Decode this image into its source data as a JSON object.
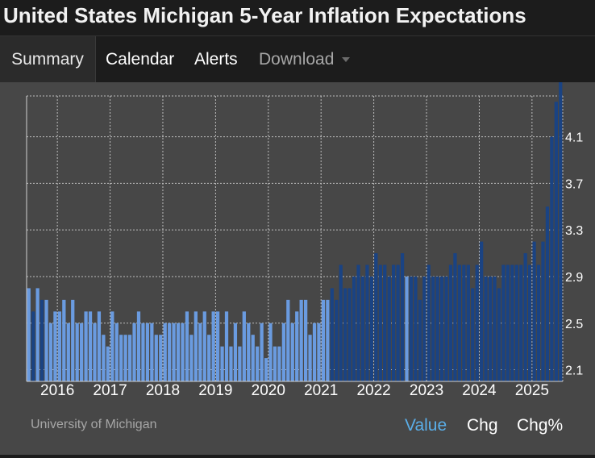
{
  "title": "United States Michigan 5-Year Inflation Expectations",
  "tabs": [
    {
      "label": "Summary",
      "active": true
    },
    {
      "label": "Calendar"
    },
    {
      "label": "Alerts"
    },
    {
      "label": "Download"
    }
  ],
  "source": "University of Michigan",
  "toggles": [
    {
      "label": "Value",
      "active": true
    },
    {
      "label": "Chg"
    },
    {
      "label": "Chg%"
    }
  ],
  "colors": {
    "bar_light": "#6a9be0",
    "bar_dark": "#1a4383",
    "plot_bg": "#474747",
    "grid": "#bdbdbd",
    "accent": "#5aaee8"
  },
  "chart_data": {
    "type": "bar",
    "title": "",
    "xlabel": "",
    "ylabel": "",
    "start_year": 2015,
    "start_month": 6,
    "ylim": [
      2.0,
      4.45
    ],
    "yticks": [
      "2.1",
      "2.5",
      "2.9",
      "3.3",
      "3.7",
      "4.1"
    ],
    "xticks": [
      "2016",
      "2017",
      "2018",
      "2019",
      "2020",
      "2021",
      "2022",
      "2023",
      "2024",
      "2025"
    ],
    "grid": true,
    "dark_from": "2021-03",
    "values": [
      2.8,
      2.6,
      2.8,
      2.7,
      2.7,
      2.5,
      2.6,
      2.6,
      2.7,
      2.5,
      2.7,
      2.5,
      2.5,
      2.6,
      2.6,
      2.5,
      2.6,
      2.4,
      2.3,
      2.6,
      2.5,
      2.4,
      2.4,
      2.4,
      2.5,
      2.6,
      2.5,
      2.5,
      2.5,
      2.4,
      2.4,
      2.5,
      2.5,
      2.5,
      2.5,
      2.5,
      2.6,
      2.4,
      2.6,
      2.5,
      2.6,
      2.4,
      2.6,
      2.6,
      2.3,
      2.6,
      2.3,
      2.5,
      2.3,
      2.6,
      2.5,
      2.4,
      2.3,
      2.5,
      2.2,
      2.5,
      2.3,
      2.3,
      2.5,
      2.7,
      2.5,
      2.6,
      2.7,
      2.7,
      2.4,
      2.5,
      2.5,
      2.7,
      2.7,
      2.8,
      2.7,
      3.0,
      2.8,
      2.8,
      2.9,
      3.0,
      2.9,
      3.0,
      2.9,
      3.1,
      3.0,
      3.0,
      2.9,
      3.0,
      3.0,
      3.1,
      2.9,
      2.9,
      2.9,
      2.7,
      2.9,
      3.0,
      2.9,
      2.9,
      2.9,
      2.9,
      3.0,
      3.1,
      3.0,
      3.0,
      3.0,
      2.8,
      3.0,
      3.2,
      2.9,
      2.9,
      2.9,
      2.8,
      3.0,
      3.0,
      3.0,
      3.0,
      3.0,
      3.1,
      3.0,
      3.2,
      3.0,
      3.2,
      3.5,
      4.1,
      4.4,
      4.6
    ]
  }
}
